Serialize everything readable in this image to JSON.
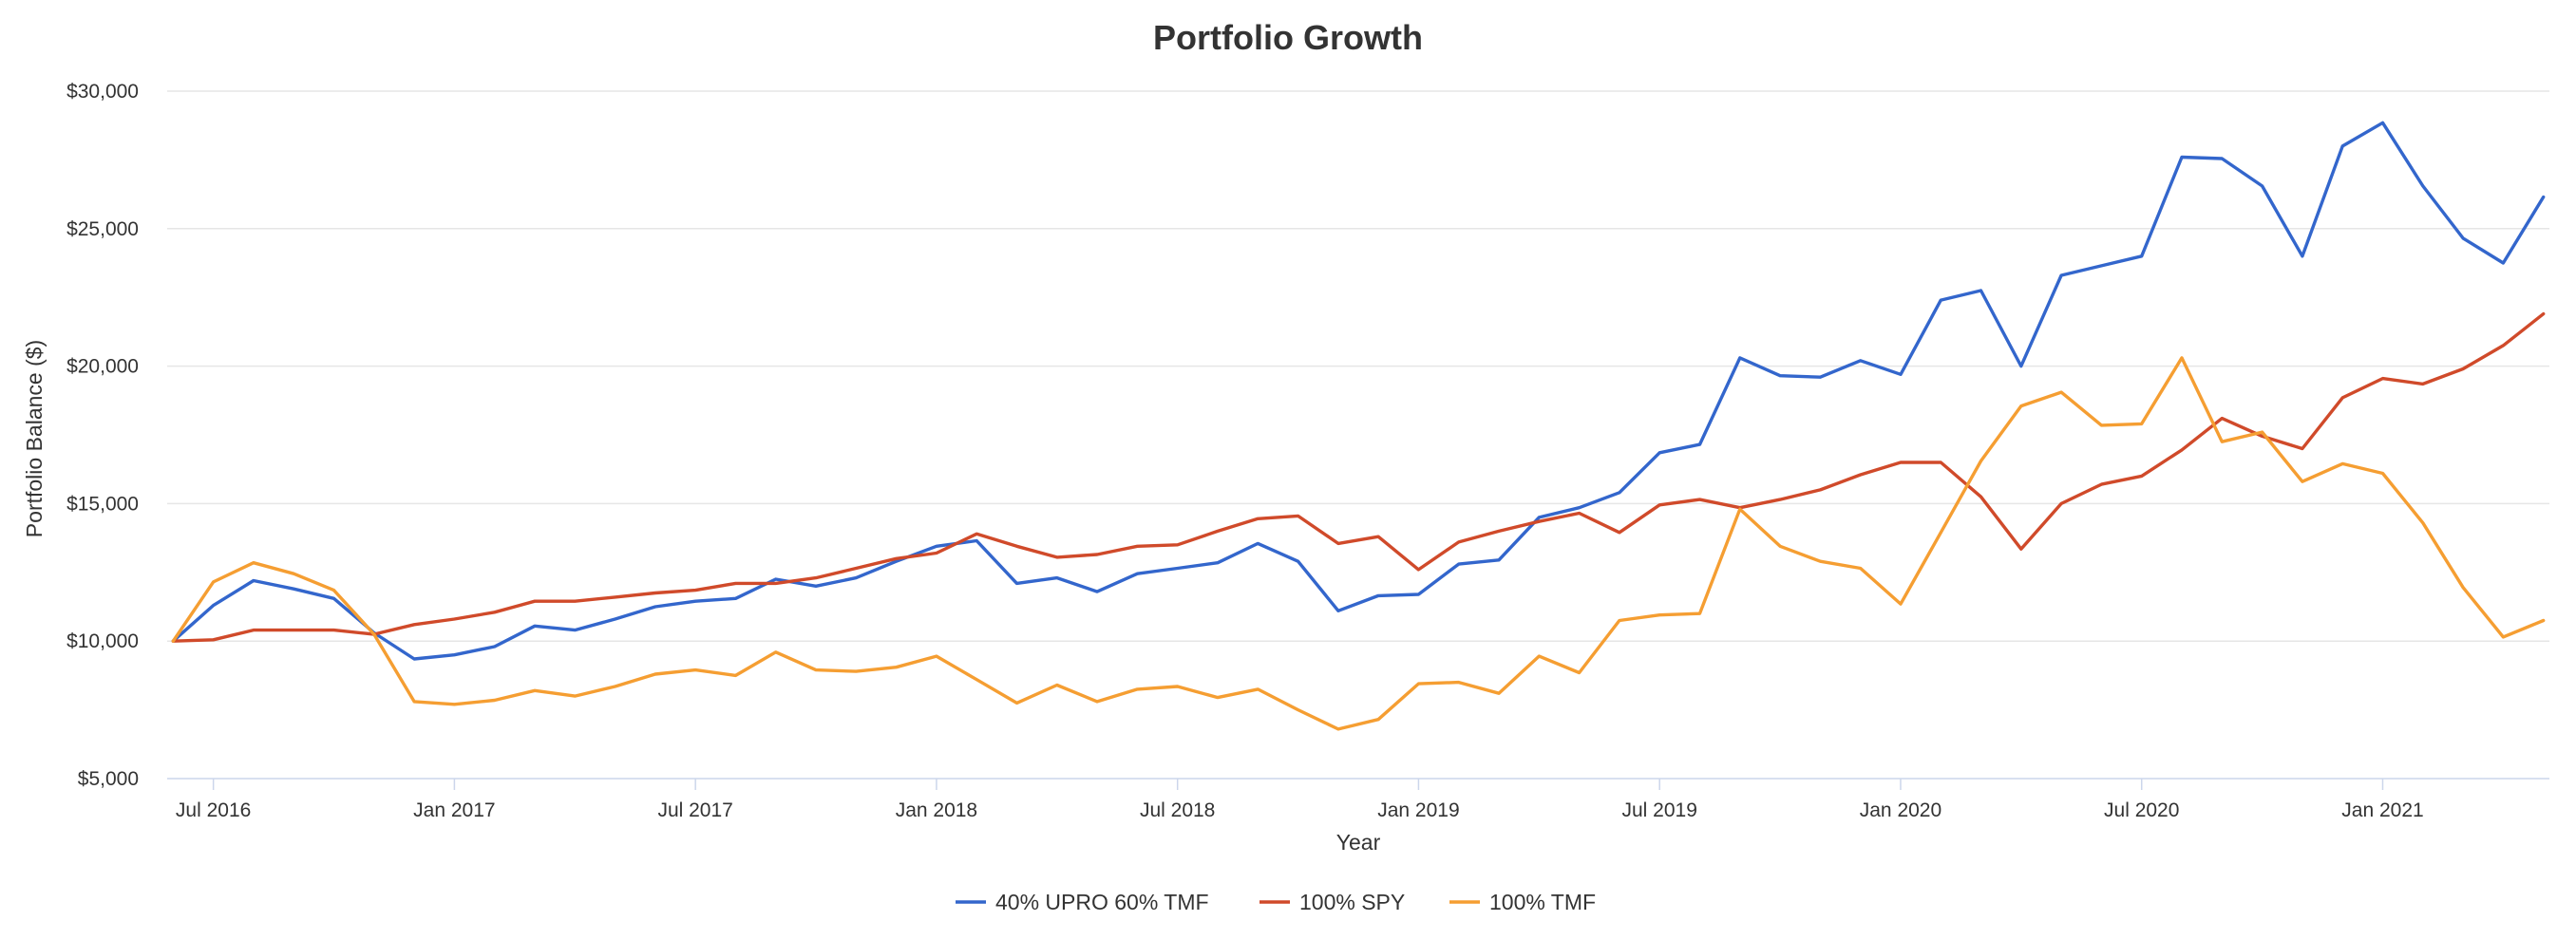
{
  "chart_data": {
    "type": "line",
    "title": "Portfolio Growth",
    "xlabel": "Year",
    "ylabel": "Portfolio Balance ($)",
    "ylim": [
      5000,
      30000
    ],
    "y_ticks": [
      5000,
      10000,
      15000,
      20000,
      25000,
      30000
    ],
    "y_tick_labels": [
      "$5,000",
      "$10,000",
      "$15,000",
      "$20,000",
      "$25,000",
      "$30,000"
    ],
    "x_start": "2016-06",
    "x_end": "2021-05",
    "x_ticks": [
      "2016-07",
      "2017-01",
      "2017-07",
      "2018-01",
      "2018-07",
      "2019-01",
      "2019-07",
      "2020-01",
      "2020-07",
      "2021-01"
    ],
    "x_tick_labels": [
      "Jul 2016",
      "Jan 2017",
      "Jul 2017",
      "Jan 2018",
      "Jul 2018",
      "Jan 2019",
      "Jul 2019",
      "Jan 2020",
      "Jul 2020",
      "Jan 2021"
    ],
    "grid": true,
    "legend_position": "bottom",
    "x": [
      "2016-06",
      "2016-07",
      "2016-08",
      "2016-09",
      "2016-10",
      "2016-11",
      "2016-12",
      "2017-01",
      "2017-02",
      "2017-03",
      "2017-04",
      "2017-05",
      "2017-06",
      "2017-07",
      "2017-08",
      "2017-09",
      "2017-10",
      "2017-11",
      "2017-12",
      "2018-01",
      "2018-02",
      "2018-03",
      "2018-04",
      "2018-05",
      "2018-06",
      "2018-07",
      "2018-08",
      "2018-09",
      "2018-10",
      "2018-11",
      "2018-12",
      "2019-01",
      "2019-02",
      "2019-03",
      "2019-04",
      "2019-05",
      "2019-06",
      "2019-07",
      "2019-08",
      "2019-09",
      "2019-10",
      "2019-11",
      "2019-12",
      "2020-01",
      "2020-02",
      "2020-03",
      "2020-04",
      "2020-05",
      "2020-06",
      "2020-07",
      "2020-08",
      "2020-09",
      "2020-10",
      "2020-11",
      "2020-12",
      "2021-01",
      "2021-02",
      "2021-03",
      "2021-04",
      "2021-05"
    ],
    "series": [
      {
        "name": "40% UPRO 60% TMF",
        "color": "#3366cc",
        "values": [
          10000,
          11300,
          12200,
          11900,
          11550,
          10300,
          9350,
          9500,
          9800,
          10550,
          10400,
          10800,
          11250,
          11450,
          11550,
          12250,
          12000,
          12300,
          12900,
          13450,
          13650,
          12100,
          12300,
          11800,
          12450,
          12650,
          12850,
          13550,
          12900,
          11100,
          11650,
          11700,
          12800,
          12950,
          14500,
          14850,
          15400,
          16850,
          17150,
          20300,
          19650,
          19600,
          20200,
          19700,
          22400,
          22750,
          20000,
          23300,
          23650,
          24000,
          27600,
          27550,
          26550,
          24000,
          28000,
          28850,
          26550,
          24650,
          23750,
          26150
        ]
      },
      {
        "name": "100% SPY",
        "color": "#d04a2a",
        "values": [
          10000,
          10050,
          10400,
          10400,
          10400,
          10250,
          10600,
          10800,
          11050,
          11450,
          11450,
          11600,
          11750,
          11850,
          12100,
          12100,
          12300,
          12650,
          13000,
          13200,
          13900,
          13450,
          13050,
          13150,
          13450,
          13500,
          14000,
          14450,
          14550,
          13550,
          13800,
          12600,
          13600,
          14000,
          14350,
          14650,
          13950,
          14950,
          15150,
          14850,
          15150,
          15500,
          16050,
          16500,
          16500,
          15250,
          13350,
          15000,
          15700,
          16000,
          16950,
          18100,
          17450,
          17000,
          18850,
          19550,
          19350,
          19900,
          20750,
          21900
        ]
      },
      {
        "name": "100% TMF",
        "color": "#f59e32",
        "values": [
          10000,
          12150,
          12850,
          12450,
          11850,
          10250,
          7800,
          7700,
          7850,
          8200,
          8000,
          8350,
          8800,
          8950,
          8750,
          9600,
          8950,
          8900,
          9050,
          9450,
          8600,
          7750,
          8400,
          7800,
          8250,
          8350,
          7950,
          8250,
          7500,
          6800,
          7150,
          8450,
          8500,
          8100,
          9450,
          8850,
          10750,
          10950,
          11000,
          14800,
          13450,
          12900,
          12650,
          11350,
          13950,
          16550,
          18550,
          19050,
          17850,
          17900,
          20300,
          17250,
          17600,
          15800,
          16450,
          16100,
          14300,
          11950,
          10150,
          10750
        ]
      }
    ]
  }
}
